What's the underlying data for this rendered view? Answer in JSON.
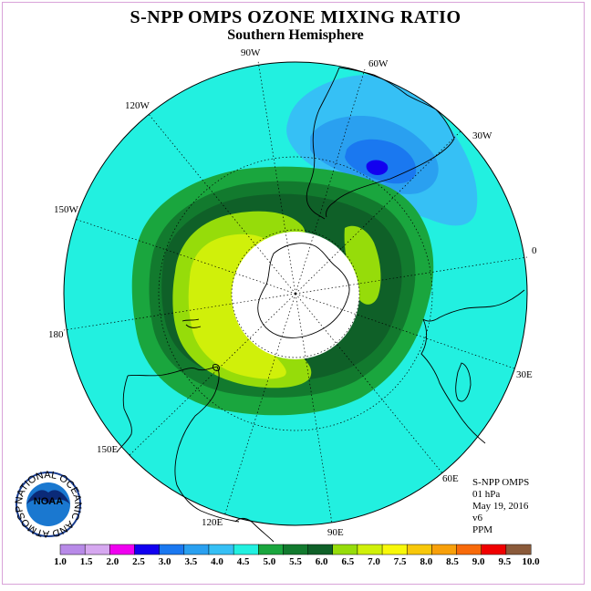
{
  "title": "S-NPP OMPS OZONE MIXING RATIO",
  "subtitle": "Southern Hemisphere",
  "longitude_labels": {
    "w90": "90W",
    "w60": "60W",
    "w30": "30W",
    "w120": "120W",
    "w150": "150W",
    "e0": "0",
    "d180": "180",
    "e30": "30E",
    "e150": "150E",
    "e60": "60E",
    "e120": "120E",
    "e90": "90E"
  },
  "info": {
    "instrument": "S-NPP OMPS",
    "level": "01 hPa",
    "date": "May 19, 2016",
    "version": "v6",
    "units": "PPM"
  },
  "logo": {
    "text": "NOAA",
    "ring_text": "NATIONAL OCEANIC AND ATMOSPHERIC ADMINISTRATION · U.S. DEPARTMENT OF COMMERCE"
  },
  "colorbar": {
    "labels": [
      "1.0",
      "1.5",
      "2.0",
      "2.5",
      "3.0",
      "3.5",
      "4.0",
      "4.5",
      "5.0",
      "5.5",
      "6.0",
      "6.5",
      "7.0",
      "7.5",
      "8.0",
      "8.5",
      "9.0",
      "9.5",
      "10.0"
    ],
    "colors": [
      "#b88ae8",
      "#d6a8f0",
      "#f000f0",
      "#1200f0",
      "#1a78f0",
      "#2aa0f0",
      "#36c0f5",
      "#22f0e0",
      "#1aa63e",
      "#127a2e",
      "#0f6028",
      "#96dc0a",
      "#d0f00a",
      "#f8f80a",
      "#f8c80a",
      "#f8a00a",
      "#f86a0a",
      "#f00000",
      "#8a5a3a"
    ]
  }
}
